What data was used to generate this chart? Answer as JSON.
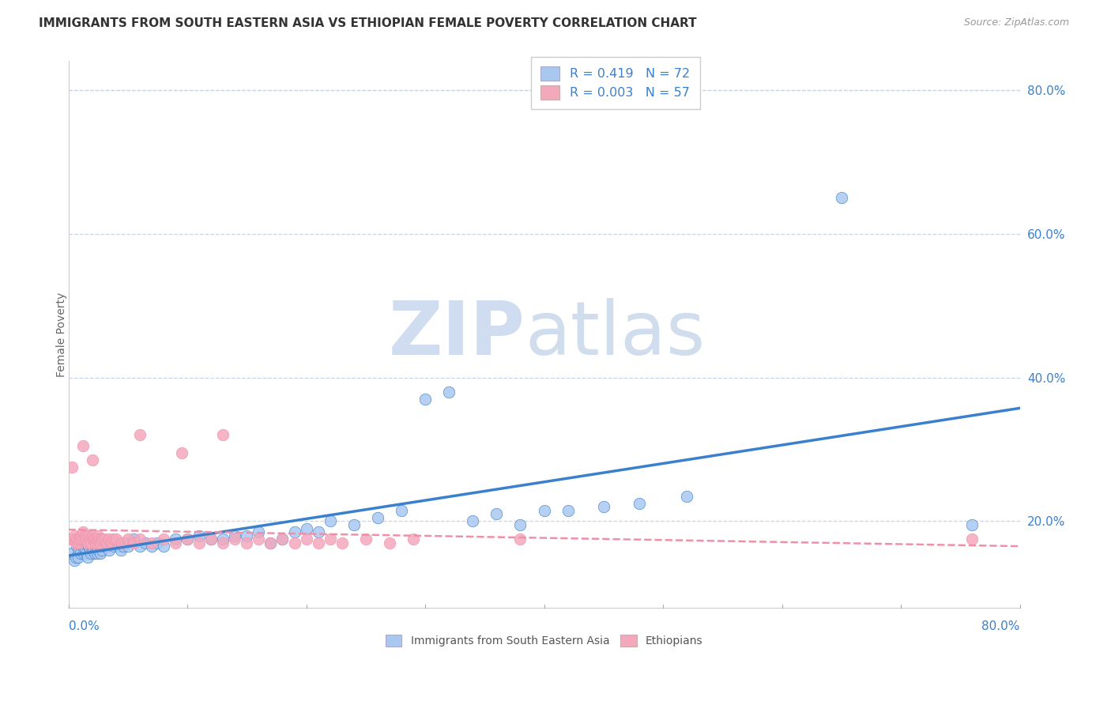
{
  "title": "IMMIGRANTS FROM SOUTH EASTERN ASIA VS ETHIOPIAN FEMALE POVERTY CORRELATION CHART",
  "source_text": "Source: ZipAtlas.com",
  "legend_label1": "Immigrants from South Eastern Asia",
  "legend_label2": "Ethiopians",
  "r1": "0.419",
  "n1": "72",
  "r2": "0.003",
  "n2": "57",
  "xlim": [
    0.0,
    0.8
  ],
  "ylim": [
    0.08,
    0.84
  ],
  "yticks": [
    0.2,
    0.4,
    0.6,
    0.8
  ],
  "ytick_labels": [
    "20.0%",
    "40.0%",
    "60.0%",
    "80.0%"
  ],
  "color_blue": "#a8c8f0",
  "color_pink": "#f4a8bc",
  "color_blue_line": "#3a80cc",
  "color_pink_line": "#f090a8",
  "background_color": "#ffffff",
  "grid_color": "#c8d4e8",
  "ylabel": "Female Poverty",
  "blue_scatter_x": [
    0.003,
    0.005,
    0.006,
    0.007,
    0.008,
    0.009,
    0.01,
    0.011,
    0.012,
    0.013,
    0.014,
    0.015,
    0.016,
    0.017,
    0.018,
    0.019,
    0.02,
    0.021,
    0.022,
    0.023,
    0.024,
    0.025,
    0.026,
    0.027,
    0.028,
    0.029,
    0.03,
    0.032,
    0.034,
    0.036,
    0.038,
    0.04,
    0.042,
    0.044,
    0.046,
    0.048,
    0.05,
    0.055,
    0.06,
    0.065,
    0.07,
    0.075,
    0.08,
    0.09,
    0.1,
    0.11,
    0.12,
    0.13,
    0.14,
    0.15,
    0.16,
    0.17,
    0.18,
    0.19,
    0.2,
    0.21,
    0.22,
    0.24,
    0.26,
    0.28,
    0.3,
    0.32,
    0.34,
    0.36,
    0.38,
    0.4,
    0.42,
    0.45,
    0.48,
    0.52,
    0.65,
    0.76
  ],
  "blue_scatter_y": [
    0.155,
    0.145,
    0.15,
    0.165,
    0.15,
    0.16,
    0.155,
    0.17,
    0.165,
    0.155,
    0.16,
    0.155,
    0.15,
    0.165,
    0.16,
    0.155,
    0.165,
    0.16,
    0.155,
    0.165,
    0.155,
    0.16,
    0.165,
    0.155,
    0.16,
    0.17,
    0.165,
    0.165,
    0.16,
    0.17,
    0.165,
    0.17,
    0.165,
    0.16,
    0.165,
    0.17,
    0.165,
    0.175,
    0.165,
    0.17,
    0.165,
    0.17,
    0.165,
    0.175,
    0.175,
    0.18,
    0.175,
    0.175,
    0.18,
    0.18,
    0.185,
    0.17,
    0.175,
    0.185,
    0.19,
    0.185,
    0.2,
    0.195,
    0.205,
    0.215,
    0.37,
    0.38,
    0.2,
    0.21,
    0.195,
    0.215,
    0.215,
    0.22,
    0.225,
    0.235,
    0.65,
    0.195
  ],
  "pink_scatter_x": [
    0.002,
    0.004,
    0.005,
    0.006,
    0.007,
    0.008,
    0.009,
    0.01,
    0.011,
    0.012,
    0.013,
    0.014,
    0.015,
    0.016,
    0.017,
    0.018,
    0.019,
    0.02,
    0.021,
    0.022,
    0.023,
    0.024,
    0.025,
    0.026,
    0.027,
    0.028,
    0.03,
    0.032,
    0.034,
    0.036,
    0.038,
    0.04,
    0.045,
    0.05,
    0.055,
    0.06,
    0.07,
    0.08,
    0.09,
    0.1,
    0.11,
    0.12,
    0.13,
    0.14,
    0.15,
    0.16,
    0.17,
    0.18,
    0.19,
    0.2,
    0.21,
    0.22,
    0.23,
    0.25,
    0.27,
    0.29,
    0.38
  ],
  "pink_scatter_y": [
    0.175,
    0.175,
    0.18,
    0.17,
    0.175,
    0.17,
    0.175,
    0.18,
    0.175,
    0.185,
    0.175,
    0.18,
    0.175,
    0.17,
    0.18,
    0.175,
    0.17,
    0.18,
    0.175,
    0.175,
    0.17,
    0.175,
    0.18,
    0.175,
    0.17,
    0.175,
    0.175,
    0.17,
    0.175,
    0.17,
    0.175,
    0.175,
    0.17,
    0.175,
    0.17,
    0.175,
    0.17,
    0.175,
    0.17,
    0.175,
    0.17,
    0.175,
    0.17,
    0.175,
    0.17,
    0.175,
    0.17,
    0.175,
    0.17,
    0.175,
    0.17,
    0.175,
    0.17,
    0.175,
    0.17,
    0.175,
    0.175
  ],
  "pink_outliers_x": [
    0.003,
    0.012,
    0.02,
    0.06,
    0.095,
    0.13,
    0.76
  ],
  "pink_outliers_y": [
    0.275,
    0.305,
    0.285,
    0.32,
    0.295,
    0.32,
    0.175
  ]
}
